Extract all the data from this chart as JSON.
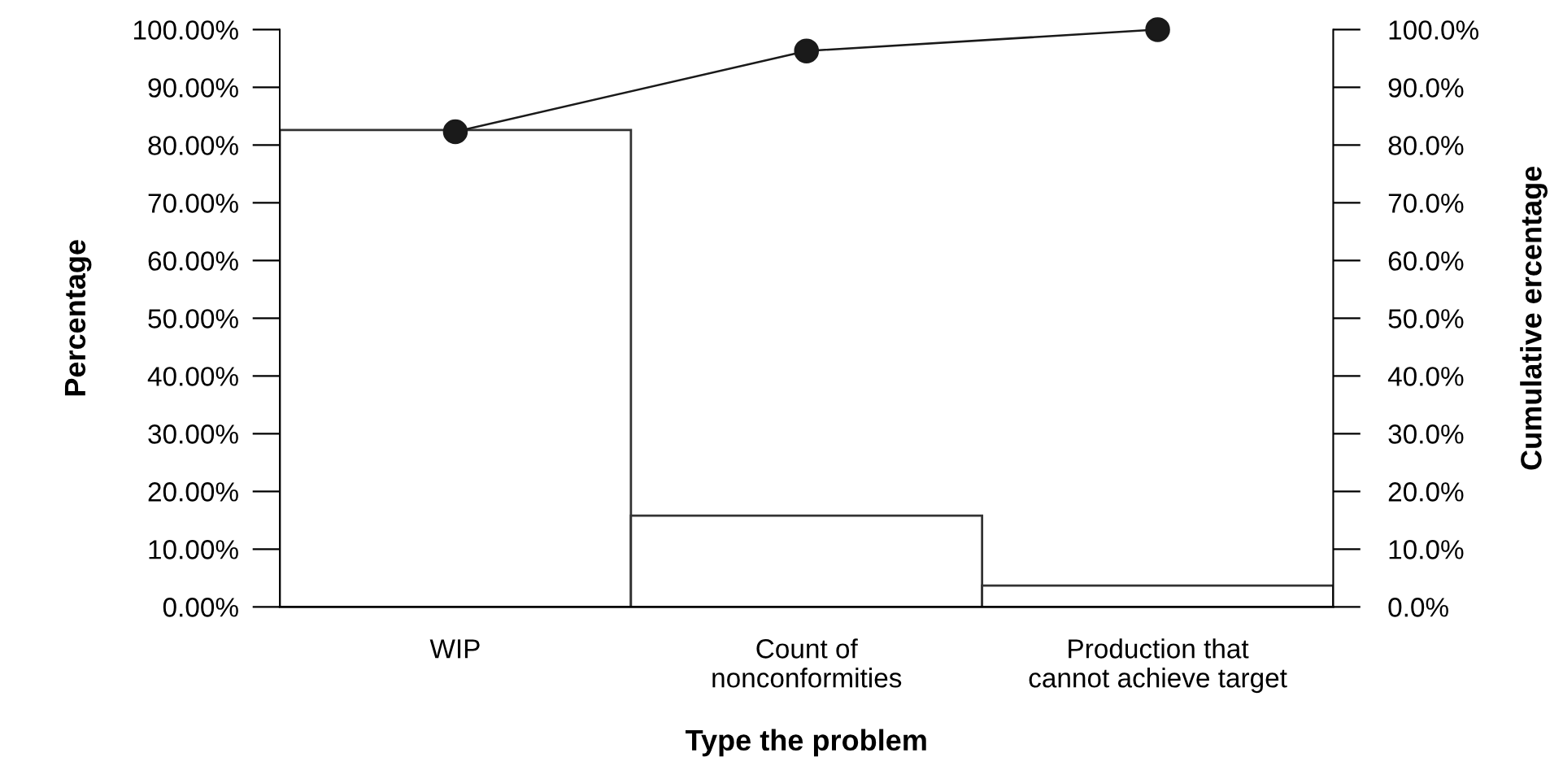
{
  "chart_data": {
    "type": "bar",
    "xlabel": "Type the problem",
    "ylabel": "Percentage",
    "y2label": "Cumulative ercentage",
    "categories": [
      "WIP",
      "Count of\nnonconformities",
      "Production that\ncannot achieve target"
    ],
    "series": [
      {
        "color": "#ffffff",
        "values": [
          82.6,
          15.8,
          3.7
        ]
      },
      {
        "type": "line",
        "axis": "y2",
        "color": "#1a1a1a",
        "values": [
          82.3,
          96.3,
          100
        ]
      }
    ],
    "marker": "circle",
    "ylim": [
      0,
      100
    ],
    "y2lim": [
      0,
      100
    ],
    "yticks": [
      {
        "value": 0,
        "label": "0.00%"
      },
      {
        "value": 10,
        "label": "10.00%"
      },
      {
        "value": 20,
        "label": "20.00%"
      },
      {
        "value": 30,
        "label": "30.00%"
      },
      {
        "value": 40,
        "label": "40.00%"
      },
      {
        "value": 50,
        "label": "50.00%"
      },
      {
        "value": 60,
        "label": "60.00%"
      },
      {
        "value": 70,
        "label": "70.00%"
      },
      {
        "value": 80,
        "label": "80.00%"
      },
      {
        "value": 90,
        "label": "90.00%"
      },
      {
        "value": 100,
        "label": "100.00%"
      }
    ],
    "y2ticks": [
      {
        "value": 0,
        "label": "0.0%"
      },
      {
        "value": 10,
        "label": "10.0%"
      },
      {
        "value": 20,
        "label": "20.0%"
      },
      {
        "value": 30,
        "label": "30.0%"
      },
      {
        "value": 40,
        "label": "40.0%"
      },
      {
        "value": 50,
        "label": "50.0%"
      },
      {
        "value": 60,
        "label": "60.0%"
      },
      {
        "value": 70,
        "label": "70.0%"
      },
      {
        "value": 80,
        "label": "80.0%"
      },
      {
        "value": 90,
        "label": "90.0%"
      },
      {
        "value": 100,
        "label": "100.0%"
      }
    ],
    "grid": false,
    "legend": false
  }
}
